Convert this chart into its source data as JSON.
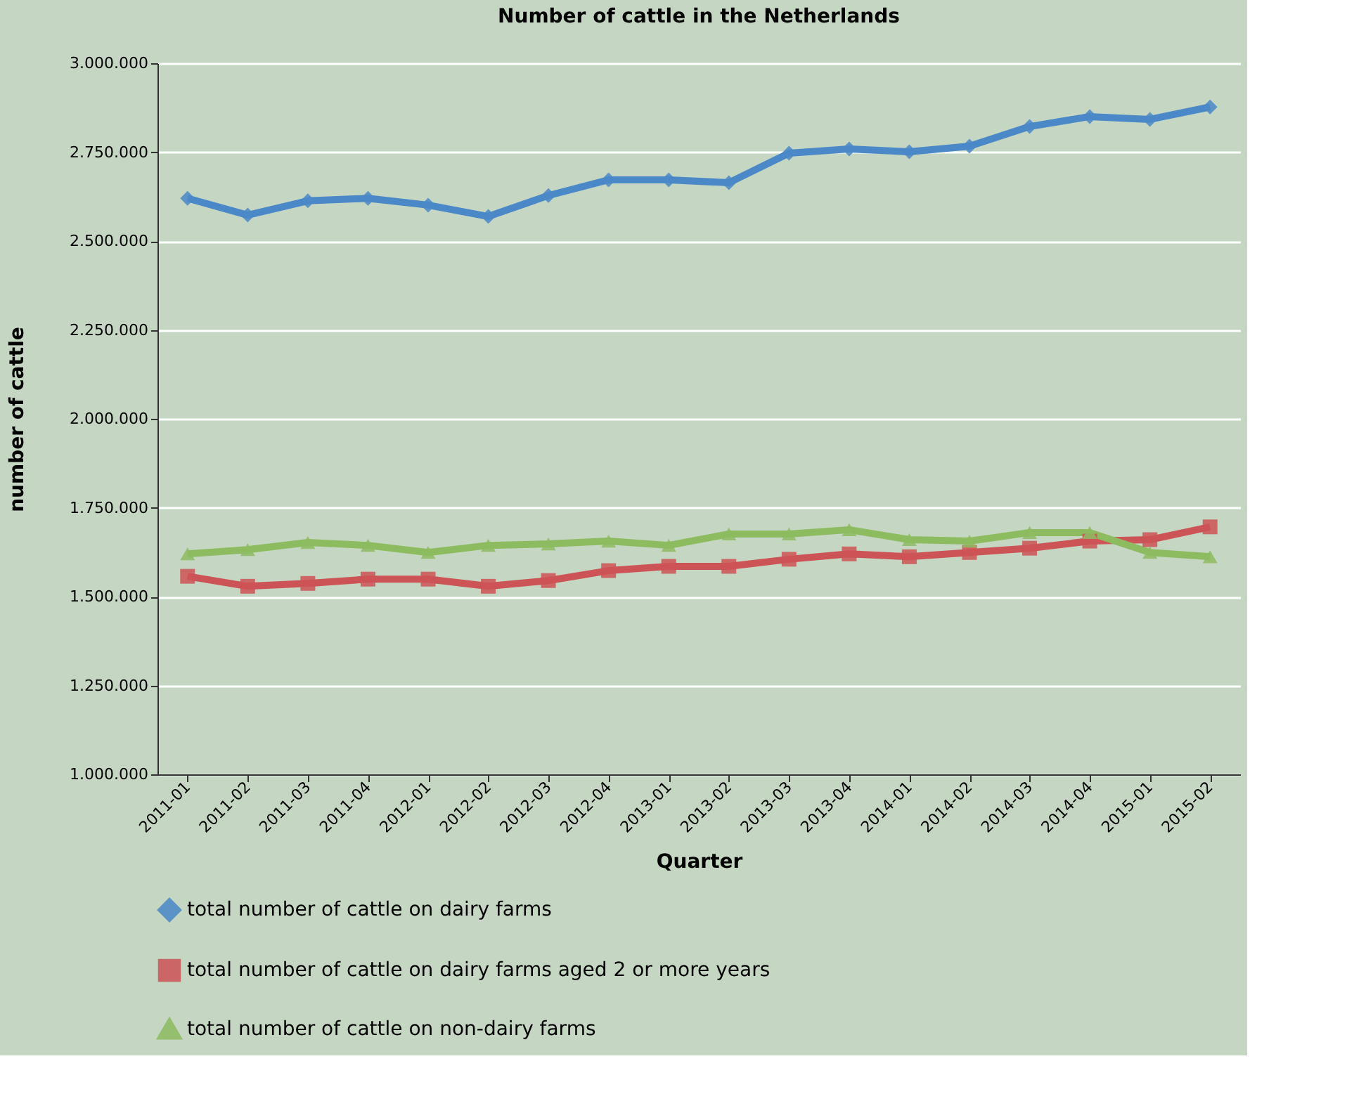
{
  "chart_data": {
    "type": "line",
    "title": "Number of cattle in the Netherlands",
    "xlabel": "Quarter",
    "ylabel": "number of cattle",
    "categories": [
      "2011-01",
      "2011-02",
      "2011-03",
      "2011-04",
      "2012-01",
      "2012-02",
      "2012-03",
      "2012-04",
      "2013-01",
      "2013-02",
      "2013-03",
      "2013-04",
      "2014-01",
      "2014-02",
      "2014-03",
      "2014-04",
      "2015-01",
      "2015-02"
    ],
    "series": [
      {
        "name": "total number of cattle on dairy farms",
        "color": "#4a88c8",
        "marker": "diamond",
        "values": [
          2620000,
          2573000,
          2613000,
          2620000,
          2601000,
          2569000,
          2628000,
          2672000,
          2672000,
          2664000,
          2747000,
          2759000,
          2751000,
          2767000,
          2822000,
          2850000,
          2842000,
          2877000
        ]
      },
      {
        "name": "total number of cattle on dairy farms aged 2 or more years",
        "color": "#cc5356",
        "marker": "square",
        "values": [
          1557000,
          1529000,
          1537000,
          1549000,
          1549000,
          1529000,
          1545000,
          1573000,
          1585000,
          1585000,
          1605000,
          1620000,
          1612000,
          1624000,
          1636000,
          1656000,
          1660000,
          1696000
        ]
      },
      {
        "name": "total number of cattle on non-dairy farms",
        "color": "#8dbb60",
        "marker": "triangle",
        "values": [
          1620000,
          1632000,
          1652000,
          1644000,
          1624000,
          1644000,
          1648000,
          1656000,
          1644000,
          1676000,
          1676000,
          1688000,
          1660000,
          1656000,
          1680000,
          1680000,
          1624000,
          1612000
        ]
      }
    ],
    "ylim": [
      1000000,
      3000000
    ],
    "yticks": [
      {
        "value": 1000000,
        "label": "1.000.000"
      },
      {
        "value": 1250000,
        "label": "1.250.000"
      },
      {
        "value": 1500000,
        "label": "1.500.000"
      },
      {
        "value": 1750000,
        "label": "1.750.000"
      },
      {
        "value": 2000000,
        "label": "2.000.000"
      },
      {
        "value": 2250000,
        "label": "2.250.000"
      },
      {
        "value": 2500000,
        "label": "2.500.000"
      },
      {
        "value": 2750000,
        "label": "2.750.000"
      },
      {
        "value": 3000000,
        "label": "3.000.000"
      }
    ],
    "grid": "y",
    "legend": "bottom",
    "line_style": "solid"
  }
}
